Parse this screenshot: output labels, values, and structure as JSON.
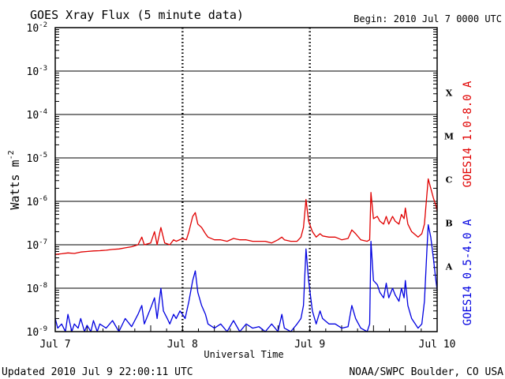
{
  "chart_data": {
    "type": "line",
    "title": "GOES Xray Flux (5 minute data)",
    "begin": "Begin:  2010 Jul 7 0000 UTC",
    "xlabel": "Universal Time",
    "ylabel": "Watts m",
    "ylabel_exponent": "-2",
    "y_scale": "log",
    "ylim": [
      1e-09,
      0.01
    ],
    "xlim": [
      0,
      3
    ],
    "x_unit_note": "days after 2010 Jul 7 0000 UTC",
    "x_ticks": [
      {
        "value": 0,
        "label": "Jul 7"
      },
      {
        "value": 1,
        "label": "Jul 8"
      },
      {
        "value": 2,
        "label": "Jul 9"
      },
      {
        "value": 3,
        "label": "Jul 10"
      }
    ],
    "y_ticks": [
      {
        "value": 1e-09,
        "mantissa": "10",
        "exponent": "-9"
      },
      {
        "value": 1e-08,
        "mantissa": "10",
        "exponent": "-8"
      },
      {
        "value": 1e-07,
        "mantissa": "10",
        "exponent": "-7"
      },
      {
        "value": 1e-06,
        "mantissa": "10",
        "exponent": "-6"
      },
      {
        "value": 1e-05,
        "mantissa": "10",
        "exponent": "-5"
      },
      {
        "value": 0.0001,
        "mantissa": "10",
        "exponent": "-4"
      },
      {
        "value": 0.001,
        "mantissa": "10",
        "exponent": "-3"
      },
      {
        "value": 0.01,
        "mantissa": "10",
        "exponent": "-2"
      }
    ],
    "flare_classes": [
      {
        "label": "A",
        "band": [
          1e-08,
          1e-07
        ]
      },
      {
        "label": "B",
        "band": [
          1e-07,
          1e-06
        ]
      },
      {
        "label": "C",
        "band": [
          1e-06,
          1e-05
        ]
      },
      {
        "label": "M",
        "band": [
          1e-05,
          0.0001
        ]
      },
      {
        "label": "X",
        "band": [
          0.0001,
          0.001
        ]
      }
    ],
    "grid": true,
    "series": [
      {
        "name": "GOES14 1.0-8.0 A",
        "color": "#e00000",
        "points": [
          [
            0.0,
            6e-08
          ],
          [
            0.05,
            6.2e-08
          ],
          [
            0.1,
            6.5e-08
          ],
          [
            0.15,
            6.3e-08
          ],
          [
            0.2,
            6.8e-08
          ],
          [
            0.25,
            7e-08
          ],
          [
            0.3,
            7.2e-08
          ],
          [
            0.35,
            7.3e-08
          ],
          [
            0.4,
            7.5e-08
          ],
          [
            0.45,
            7.8e-08
          ],
          [
            0.5,
            8e-08
          ],
          [
            0.55,
            8.5e-08
          ],
          [
            0.6,
            9e-08
          ],
          [
            0.65,
            1e-07
          ],
          [
            0.68,
            1.5e-07
          ],
          [
            0.7,
            1e-07
          ],
          [
            0.75,
            1.1e-07
          ],
          [
            0.78,
            2e-07
          ],
          [
            0.8,
            1e-07
          ],
          [
            0.83,
            2.5e-07
          ],
          [
            0.86,
            1.1e-07
          ],
          [
            0.9,
            1e-07
          ],
          [
            0.93,
            1.3e-07
          ],
          [
            0.95,
            1.2e-07
          ],
          [
            1.0,
            1.4e-07
          ],
          [
            1.03,
            1.3e-07
          ],
          [
            1.05,
            2e-07
          ],
          [
            1.08,
            4.5e-07
          ],
          [
            1.1,
            5.5e-07
          ],
          [
            1.12,
            3e-07
          ],
          [
            1.15,
            2.5e-07
          ],
          [
            1.18,
            1.8e-07
          ],
          [
            1.2,
            1.5e-07
          ],
          [
            1.25,
            1.3e-07
          ],
          [
            1.3,
            1.3e-07
          ],
          [
            1.35,
            1.2e-07
          ],
          [
            1.4,
            1.4e-07
          ],
          [
            1.45,
            1.3e-07
          ],
          [
            1.5,
            1.3e-07
          ],
          [
            1.55,
            1.2e-07
          ],
          [
            1.6,
            1.2e-07
          ],
          [
            1.65,
            1.2e-07
          ],
          [
            1.7,
            1.1e-07
          ],
          [
            1.75,
            1.3e-07
          ],
          [
            1.78,
            1.5e-07
          ],
          [
            1.8,
            1.3e-07
          ],
          [
            1.85,
            1.2e-07
          ],
          [
            1.9,
            1.2e-07
          ],
          [
            1.93,
            1.5e-07
          ],
          [
            1.95,
            2.5e-07
          ],
          [
            1.97,
            1.1e-06
          ],
          [
            1.99,
            3.5e-07
          ],
          [
            2.02,
            2e-07
          ],
          [
            2.05,
            1.5e-07
          ],
          [
            2.08,
            1.8e-07
          ],
          [
            2.1,
            1.6e-07
          ],
          [
            2.15,
            1.5e-07
          ],
          [
            2.2,
            1.5e-07
          ],
          [
            2.25,
            1.3e-07
          ],
          [
            2.3,
            1.4e-07
          ],
          [
            2.33,
            2.2e-07
          ],
          [
            2.36,
            1.8e-07
          ],
          [
            2.4,
            1.3e-07
          ],
          [
            2.45,
            1.2e-07
          ],
          [
            2.47,
            1.3e-07
          ],
          [
            2.48,
            1.6e-06
          ],
          [
            2.5,
            4e-07
          ],
          [
            2.53,
            4.5e-07
          ],
          [
            2.55,
            3.5e-07
          ],
          [
            2.58,
            3e-07
          ],
          [
            2.6,
            4.5e-07
          ],
          [
            2.62,
            3e-07
          ],
          [
            2.65,
            4.5e-07
          ],
          [
            2.67,
            3.5e-07
          ],
          [
            2.7,
            3e-07
          ],
          [
            2.72,
            5e-07
          ],
          [
            2.74,
            4e-07
          ],
          [
            2.75,
            7e-07
          ],
          [
            2.77,
            3e-07
          ],
          [
            2.8,
            2e-07
          ],
          [
            2.85,
            1.5e-07
          ],
          [
            2.88,
            1.8e-07
          ],
          [
            2.9,
            3e-07
          ],
          [
            2.92,
            1.5e-06
          ],
          [
            2.93,
            3.3e-06
          ],
          [
            2.95,
            2e-06
          ],
          [
            2.97,
            1.2e-06
          ],
          [
            2.99,
            8e-07
          ],
          [
            3.0,
            6e-07
          ]
        ]
      },
      {
        "name": "GOES14 0.5-4.0 A",
        "color": "#0000e0",
        "points": [
          [
            0.0,
            2e-09
          ],
          [
            0.02,
            1.2e-09
          ],
          [
            0.05,
            1.5e-09
          ],
          [
            0.08,
            1e-09
          ],
          [
            0.1,
            2.5e-09
          ],
          [
            0.13,
            1e-09
          ],
          [
            0.15,
            1.5e-09
          ],
          [
            0.18,
            1.2e-09
          ],
          [
            0.2,
            2e-09
          ],
          [
            0.23,
            1e-09
          ],
          [
            0.25,
            1.4e-09
          ],
          [
            0.28,
            1e-09
          ],
          [
            0.3,
            1.8e-09
          ],
          [
            0.33,
            1e-09
          ],
          [
            0.35,
            1.5e-09
          ],
          [
            0.4,
            1.2e-09
          ],
          [
            0.45,
            1.8e-09
          ],
          [
            0.5,
            1e-09
          ],
          [
            0.55,
            2e-09
          ],
          [
            0.6,
            1.3e-09
          ],
          [
            0.65,
            2.5e-09
          ],
          [
            0.68,
            4e-09
          ],
          [
            0.7,
            1.5e-09
          ],
          [
            0.75,
            3.5e-09
          ],
          [
            0.78,
            6e-09
          ],
          [
            0.8,
            2e-09
          ],
          [
            0.83,
            1e-08
          ],
          [
            0.85,
            3e-09
          ],
          [
            0.88,
            2e-09
          ],
          [
            0.9,
            1.5e-09
          ],
          [
            0.93,
            2.5e-09
          ],
          [
            0.95,
            2e-09
          ],
          [
            0.98,
            3e-09
          ],
          [
            1.0,
            2.5e-09
          ],
          [
            1.02,
            2e-09
          ],
          [
            1.05,
            5e-09
          ],
          [
            1.08,
            1.5e-08
          ],
          [
            1.1,
            2.5e-08
          ],
          [
            1.12,
            8e-09
          ],
          [
            1.15,
            4e-09
          ],
          [
            1.18,
            2.5e-09
          ],
          [
            1.2,
            1.5e-09
          ],
          [
            1.25,
            1.2e-09
          ],
          [
            1.3,
            1.5e-09
          ],
          [
            1.35,
            1e-09
          ],
          [
            1.4,
            1.8e-09
          ],
          [
            1.45,
            1e-09
          ],
          [
            1.5,
            1.5e-09
          ],
          [
            1.55,
            1.2e-09
          ],
          [
            1.6,
            1.3e-09
          ],
          [
            1.65,
            1e-09
          ],
          [
            1.7,
            1.5e-09
          ],
          [
            1.75,
            1e-09
          ],
          [
            1.78,
            2.5e-09
          ],
          [
            1.8,
            1.2e-09
          ],
          [
            1.85,
            1e-09
          ],
          [
            1.9,
            1.5e-09
          ],
          [
            1.93,
            2e-09
          ],
          [
            1.95,
            4e-09
          ],
          [
            1.97,
            8e-08
          ],
          [
            1.99,
            1.5e-08
          ],
          [
            2.02,
            3e-09
          ],
          [
            2.05,
            1.5e-09
          ],
          [
            2.08,
            3e-09
          ],
          [
            2.1,
            2e-09
          ],
          [
            2.15,
            1.5e-09
          ],
          [
            2.2,
            1.5e-09
          ],
          [
            2.25,
            1.2e-09
          ],
          [
            2.3,
            1.3e-09
          ],
          [
            2.33,
            4e-09
          ],
          [
            2.36,
            2e-09
          ],
          [
            2.4,
            1.2e-09
          ],
          [
            2.45,
            1e-09
          ],
          [
            2.47,
            1.5e-09
          ],
          [
            2.48,
            1.2e-07
          ],
          [
            2.5,
            1.5e-08
          ],
          [
            2.53,
            1.2e-08
          ],
          [
            2.55,
            8e-09
          ],
          [
            2.58,
            6e-09
          ],
          [
            2.6,
            1.3e-08
          ],
          [
            2.62,
            6e-09
          ],
          [
            2.65,
            1e-08
          ],
          [
            2.67,
            7e-09
          ],
          [
            2.7,
            5e-09
          ],
          [
            2.72,
            1e-08
          ],
          [
            2.74,
            6e-09
          ],
          [
            2.75,
            1.5e-08
          ],
          [
            2.77,
            4e-09
          ],
          [
            2.8,
            2e-09
          ],
          [
            2.85,
            1.2e-09
          ],
          [
            2.88,
            1.5e-09
          ],
          [
            2.9,
            5e-09
          ],
          [
            2.92,
            8e-08
          ],
          [
            2.93,
            2.9e-07
          ],
          [
            2.95,
            1.5e-07
          ],
          [
            2.97,
            5e-08
          ],
          [
            2.99,
            1.5e-08
          ],
          [
            3.0,
            9e-09
          ]
        ]
      }
    ],
    "footer_left": "Updated 2010 Jul  9 22:00:11 UTC",
    "footer_right": "NOAA/SWPC Boulder, CO USA"
  }
}
